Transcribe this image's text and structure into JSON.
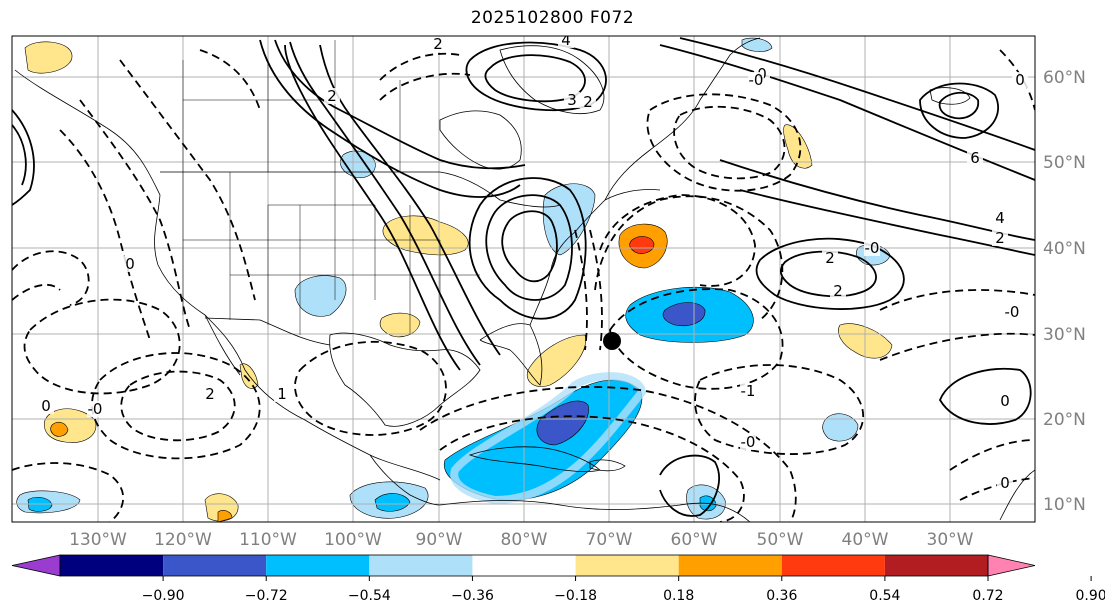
{
  "title": "2025102800 F072",
  "map": {
    "projection": "lat-lon",
    "lon_range": [
      -142,
      -22
    ],
    "lat_range": [
      7,
      65
    ],
    "lon_labels": [
      "130°W",
      "120°W",
      "110°W",
      "100°W",
      "90°W",
      "80°W",
      "70°W",
      "60°W",
      "50°W",
      "40°W",
      "30°W"
    ],
    "lat_labels": [
      "10°N",
      "20°N",
      "30°N",
      "40°N",
      "50°N",
      "60°N"
    ],
    "marker_label": "",
    "colors": {
      "contour": "#000000",
      "grid": "#b0b0b0",
      "coast": "#000000"
    }
  },
  "contour_labels": [
    "2",
    "2",
    "4",
    "3",
    "2",
    "0",
    "-0",
    "6",
    "4",
    "2",
    "-0",
    "2",
    "2",
    "-0",
    "0",
    "0",
    "2",
    "1",
    "0",
    "-0",
    "-0",
    "-1",
    "0",
    "0"
  ],
  "colorbar": {
    "ticks": [
      "−0.90",
      "−0.72",
      "−0.54",
      "−0.36",
      "−0.18",
      "0.18",
      "0.36",
      "0.54",
      "0.72",
      "0.90"
    ],
    "colors": [
      "#9a3ccf",
      "#00007f",
      "#3a56c8",
      "#00bfff",
      "#afe0fa",
      "#ffffff",
      "#ffe68c",
      "#ffa000",
      "#ff3a0f",
      "#b21d22",
      "#ff82b0"
    ]
  }
}
